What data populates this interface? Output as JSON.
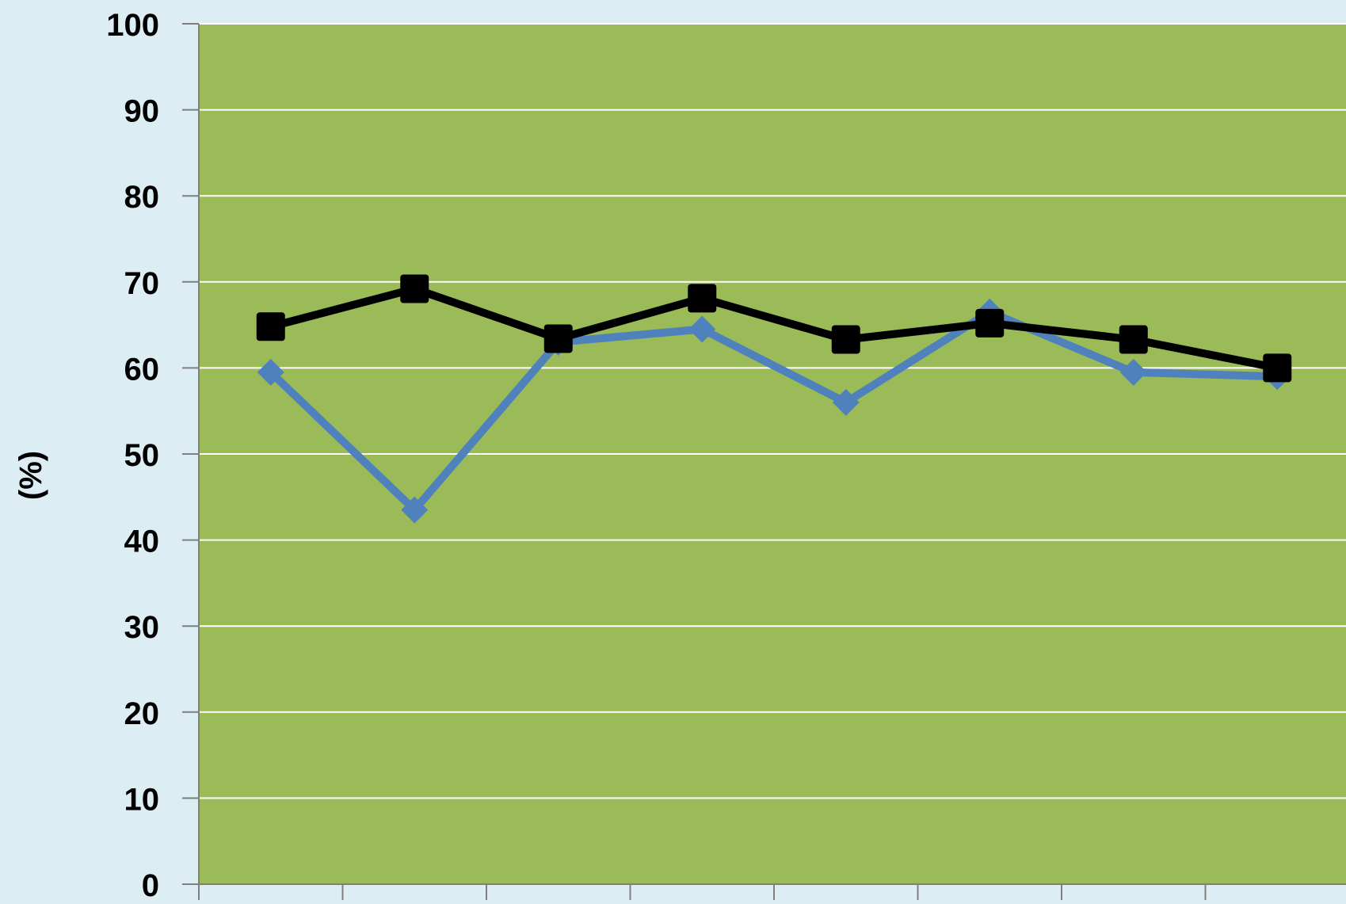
{
  "chart_data": {
    "type": "line",
    "title": "",
    "xlabel": "",
    "ylabel": "(%)",
    "ylim": [
      0,
      100
    ],
    "yticks": [
      "0",
      "10",
      "20",
      "30",
      "40",
      "50",
      "60",
      "70",
      "80",
      "90",
      "100"
    ],
    "categories": [
      "",
      "",
      "",
      "",
      "",
      "",
      "",
      ""
    ],
    "grid": true,
    "legend": "none",
    "plot_background": "#9bbb59",
    "page_background": "#dcedf3",
    "series": [
      {
        "color": "#4f81bd",
        "marker": "diamond",
        "values": [
          59.5,
          43.5,
          63.0,
          64.5,
          56.0,
          66.5,
          59.5,
          59.0
        ]
      },
      {
        "color": "#000000",
        "marker": "square",
        "values": [
          64.8,
          69.2,
          63.4,
          68.1,
          63.3,
          65.2,
          63.3,
          60.0
        ]
      }
    ]
  }
}
